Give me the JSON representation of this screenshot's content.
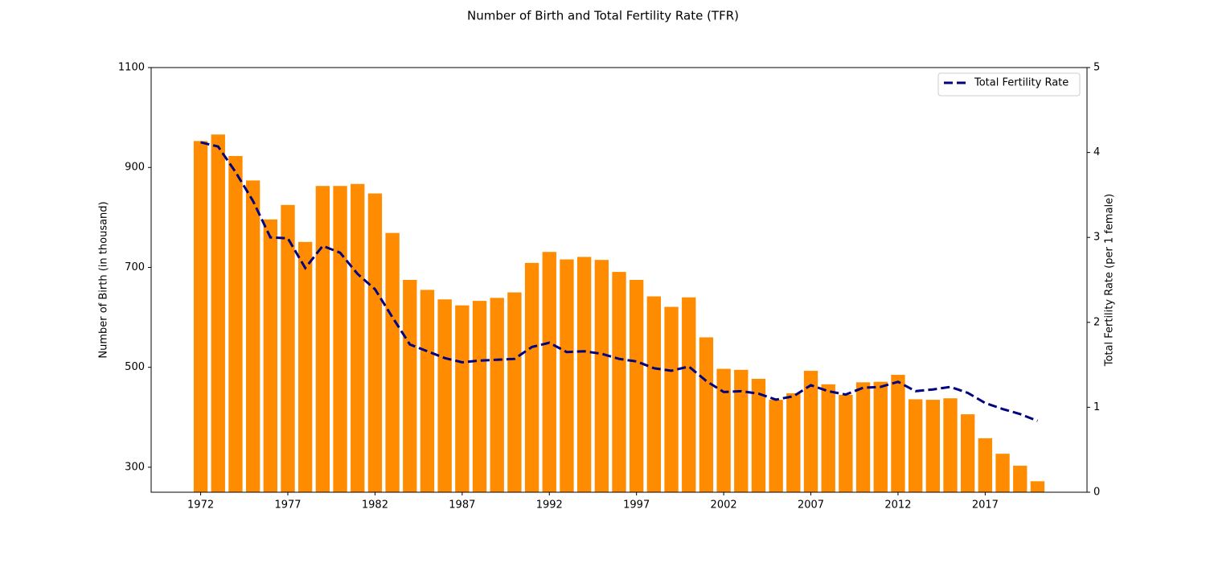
{
  "chart_data": {
    "type": "combo",
    "title": "Number of Birth and Total Fertility Rate (TFR)",
    "ylabel": "Number of Birth (in thousand)",
    "y2label": "Total Fertility Rate (per 1 female)",
    "x": [
      1972,
      1973,
      1974,
      1975,
      1976,
      1977,
      1978,
      1979,
      1980,
      1981,
      1982,
      1983,
      1984,
      1985,
      1986,
      1987,
      1988,
      1989,
      1990,
      1991,
      1992,
      1993,
      1994,
      1995,
      1996,
      1997,
      1998,
      1999,
      2000,
      2001,
      2002,
      2003,
      2004,
      2005,
      2006,
      2007,
      2008,
      2009,
      2010,
      2011,
      2012,
      2013,
      2014,
      2015,
      2016,
      2017,
      2018,
      2019,
      2020
    ],
    "series": [
      {
        "type": "bar",
        "color": "#ff8c00",
        "values": [
          953,
          966,
          923,
          874,
          796,
          825,
          751,
          863,
          863,
          867,
          848,
          769,
          675,
          655,
          636,
          624,
          633,
          639,
          650,
          709,
          731,
          716,
          721,
          715,
          691,
          675,
          642,
          621,
          640,
          560,
          497,
          495,
          477,
          435,
          448,
          493,
          466,
          445,
          470,
          471,
          485,
          436,
          435,
          438,
          406,
          358,
          327,
          303,
          272
        ]
      },
      {
        "type": "line",
        "name": "Total Fertility Rate",
        "color": "#000080",
        "axis": "y2",
        "linestyle": "dashed",
        "values": [
          4.12,
          4.07,
          3.77,
          3.43,
          3.0,
          2.99,
          2.64,
          2.9,
          2.82,
          2.57,
          2.39,
          2.06,
          1.74,
          1.66,
          1.58,
          1.53,
          1.55,
          1.56,
          1.57,
          1.71,
          1.76,
          1.65,
          1.66,
          1.63,
          1.57,
          1.54,
          1.46,
          1.43,
          1.48,
          1.31,
          1.18,
          1.19,
          1.16,
          1.09,
          1.13,
          1.26,
          1.19,
          1.15,
          1.23,
          1.24,
          1.3,
          1.19,
          1.21,
          1.24,
          1.17,
          1.05,
          0.98,
          0.92,
          0.84
        ]
      }
    ],
    "xlim": [
      1969.16,
      2022.84
    ],
    "xticks": [
      1972,
      1977,
      1982,
      1987,
      1992,
      1997,
      2002,
      2007,
      2012,
      2017
    ],
    "ylim": [
      250,
      1100
    ],
    "yticks": [
      300,
      500,
      700,
      900,
      1100
    ],
    "y2lim": [
      0,
      5
    ],
    "y2ticks": [
      0,
      1,
      2,
      3,
      4,
      5
    ],
    "legend": "upper right"
  }
}
